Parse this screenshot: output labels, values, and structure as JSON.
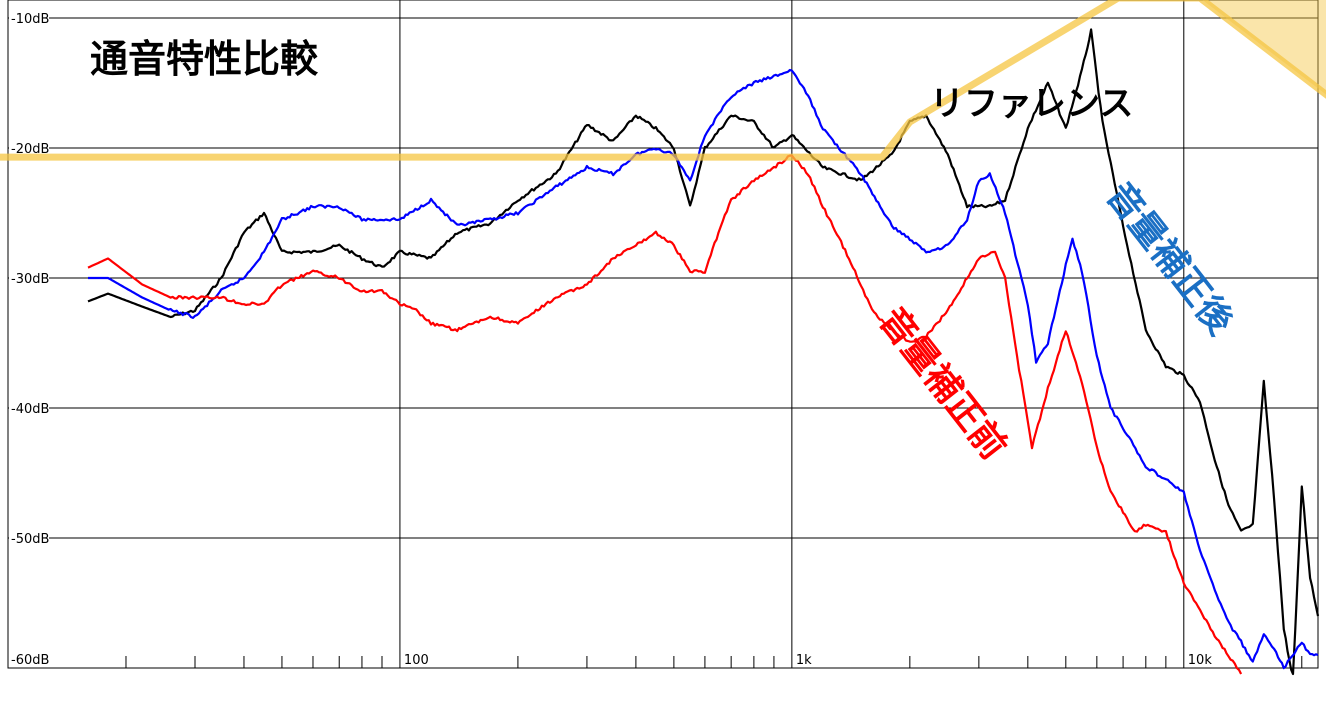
{
  "chart_data": {
    "type": "line",
    "title": "通音特性比較",
    "xlabel": "",
    "ylabel": "",
    "x_scale": "log",
    "xlim": [
      10,
      22000
    ],
    "ylim": [
      -60,
      -10
    ],
    "grid": true,
    "x_tick_labels": [
      {
        "value": 100,
        "label": "100"
      },
      {
        "value": 1000,
        "label": "1k"
      },
      {
        "value": 10000,
        "label": "10k"
      }
    ],
    "y_tick_labels": [
      {
        "value": -10,
        "label": "-10dB"
      },
      {
        "value": -20,
        "label": "-20dB"
      },
      {
        "value": -30,
        "label": "-30dB"
      },
      {
        "value": -40,
        "label": "-40dB"
      },
      {
        "value": -50,
        "label": "-50dB"
      },
      {
        "value": -60,
        "label": "-60dB"
      }
    ],
    "series": [
      {
        "name": "リファレンス",
        "color": "#000000",
        "points": [
          [
            16,
            -31.8
          ],
          [
            18,
            -31.2
          ],
          [
            22,
            -32.2
          ],
          [
            26,
            -33
          ],
          [
            30,
            -32.5
          ],
          [
            35,
            -30
          ],
          [
            40,
            -26.5
          ],
          [
            45,
            -25
          ],
          [
            50,
            -28
          ],
          [
            60,
            -28
          ],
          [
            70,
            -27.5
          ],
          [
            80,
            -28.5
          ],
          [
            90,
            -29.2
          ],
          [
            100,
            -28
          ],
          [
            120,
            -28.5
          ],
          [
            140,
            -26.5
          ],
          [
            170,
            -25.8
          ],
          [
            200,
            -24
          ],
          [
            250,
            -22
          ],
          [
            300,
            -18.2
          ],
          [
            350,
            -19.5
          ],
          [
            400,
            -17.5
          ],
          [
            450,
            -18.5
          ],
          [
            500,
            -20
          ],
          [
            550,
            -24.5
          ],
          [
            600,
            -20
          ],
          [
            700,
            -17.5
          ],
          [
            800,
            -18
          ],
          [
            900,
            -20
          ],
          [
            1000,
            -19
          ],
          [
            1200,
            -21.5
          ],
          [
            1500,
            -22.5
          ],
          [
            1800,
            -20.5
          ],
          [
            2000,
            -18
          ],
          [
            2200,
            -17.5
          ],
          [
            2500,
            -20.5
          ],
          [
            2800,
            -24.5
          ],
          [
            3200,
            -24.5
          ],
          [
            3500,
            -24
          ],
          [
            4000,
            -18.5
          ],
          [
            4500,
            -15
          ],
          [
            5000,
            -18.5
          ],
          [
            5500,
            -14
          ],
          [
            5800,
            -11
          ],
          [
            6200,
            -18
          ],
          [
            7000,
            -26
          ],
          [
            8000,
            -34
          ],
          [
            9000,
            -36.8
          ],
          [
            10000,
            -37.5
          ],
          [
            11000,
            -39.5
          ],
          [
            12000,
            -44
          ],
          [
            13000,
            -47.5
          ],
          [
            14000,
            -49.5
          ],
          [
            15000,
            -49
          ],
          [
            16000,
            -38
          ],
          [
            17000,
            -47
          ],
          [
            18000,
            -57
          ],
          [
            19000,
            -61
          ],
          [
            20000,
            -46
          ],
          [
            21000,
            -53
          ],
          [
            22000,
            -56
          ]
        ]
      },
      {
        "name": "音量補正後",
        "color": "#0000ff",
        "points": [
          [
            16,
            -30
          ],
          [
            18,
            -30
          ],
          [
            22,
            -31.5
          ],
          [
            26,
            -32.5
          ],
          [
            30,
            -33
          ],
          [
            35,
            -31
          ],
          [
            40,
            -30
          ],
          [
            45,
            -28
          ],
          [
            50,
            -25.5
          ],
          [
            60,
            -24.5
          ],
          [
            70,
            -24.5
          ],
          [
            80,
            -25.5
          ],
          [
            100,
            -25.5
          ],
          [
            120,
            -24
          ],
          [
            140,
            -26
          ],
          [
            170,
            -25.5
          ],
          [
            200,
            -25
          ],
          [
            250,
            -23
          ],
          [
            300,
            -21.5
          ],
          [
            350,
            -22
          ],
          [
            400,
            -20.5
          ],
          [
            450,
            -20
          ],
          [
            500,
            -20.5
          ],
          [
            550,
            -22.5
          ],
          [
            600,
            -19
          ],
          [
            700,
            -16
          ],
          [
            800,
            -15
          ],
          [
            900,
            -14.5
          ],
          [
            1000,
            -14
          ],
          [
            1100,
            -16
          ],
          [
            1200,
            -18.5
          ],
          [
            1500,
            -22
          ],
          [
            1800,
            -26
          ],
          [
            2000,
            -27
          ],
          [
            2200,
            -28
          ],
          [
            2500,
            -27.5
          ],
          [
            2800,
            -25.5
          ],
          [
            3000,
            -22.5
          ],
          [
            3200,
            -22
          ],
          [
            3500,
            -25
          ],
          [
            4000,
            -32
          ],
          [
            4200,
            -36.5
          ],
          [
            4500,
            -35
          ],
          [
            5000,
            -29
          ],
          [
            5200,
            -27
          ],
          [
            5500,
            -29.5
          ],
          [
            6000,
            -36
          ],
          [
            6500,
            -40
          ],
          [
            7000,
            -41.5
          ],
          [
            8000,
            -44.5
          ],
          [
            9000,
            -45.5
          ],
          [
            10000,
            -46.5
          ],
          [
            11000,
            -51
          ],
          [
            12000,
            -54
          ],
          [
            13000,
            -56.5
          ],
          [
            14000,
            -58
          ],
          [
            15000,
            -59.5
          ],
          [
            16000,
            -57.5
          ],
          [
            17000,
            -58.5
          ],
          [
            18000,
            -60
          ],
          [
            20000,
            -58
          ],
          [
            21000,
            -59
          ],
          [
            22000,
            -59
          ]
        ]
      },
      {
        "name": "音量補正前",
        "color": "#ff0000",
        "points": [
          [
            16,
            -29.2
          ],
          [
            18,
            -28.5
          ],
          [
            22,
            -30.5
          ],
          [
            26,
            -31.5
          ],
          [
            30,
            -31.5
          ],
          [
            35,
            -31.5
          ],
          [
            40,
            -32
          ],
          [
            45,
            -32
          ],
          [
            50,
            -30.5
          ],
          [
            60,
            -29.5
          ],
          [
            70,
            -30
          ],
          [
            80,
            -31
          ],
          [
            90,
            -31
          ],
          [
            100,
            -32
          ],
          [
            110,
            -32.5
          ],
          [
            120,
            -33.5
          ],
          [
            140,
            -34
          ],
          [
            170,
            -33
          ],
          [
            200,
            -33.5
          ],
          [
            250,
            -31.5
          ],
          [
            300,
            -30.5
          ],
          [
            350,
            -28.5
          ],
          [
            400,
            -27.5
          ],
          [
            450,
            -26.5
          ],
          [
            500,
            -27.5
          ],
          [
            550,
            -29.5
          ],
          [
            600,
            -29.5
          ],
          [
            650,
            -26.5
          ],
          [
            700,
            -24
          ],
          [
            800,
            -22.5
          ],
          [
            900,
            -21.5
          ],
          [
            1000,
            -20.5
          ],
          [
            1100,
            -22
          ],
          [
            1200,
            -24.5
          ],
          [
            1400,
            -28.5
          ],
          [
            1500,
            -30.5
          ],
          [
            1600,
            -32.5
          ],
          [
            1800,
            -34
          ],
          [
            2000,
            -35
          ],
          [
            2200,
            -34.5
          ],
          [
            2500,
            -32.5
          ],
          [
            2800,
            -30
          ],
          [
            3000,
            -28.5
          ],
          [
            3300,
            -28
          ],
          [
            3500,
            -30
          ],
          [
            3800,
            -37
          ],
          [
            4100,
            -43
          ],
          [
            4500,
            -38.5
          ],
          [
            5000,
            -34
          ],
          [
            5500,
            -38
          ],
          [
            6000,
            -43
          ],
          [
            6500,
            -46.5
          ],
          [
            7000,
            -48
          ],
          [
            7500,
            -49.5
          ],
          [
            8000,
            -49
          ],
          [
            9000,
            -49.5
          ],
          [
            10000,
            -53.5
          ],
          [
            11000,
            -55.5
          ],
          [
            12000,
            -57.5
          ],
          [
            13000,
            -59
          ],
          [
            14000,
            -60.5
          ]
        ]
      }
    ],
    "annotations": [
      {
        "text": "リファレンス",
        "color": "#000000"
      },
      {
        "text": "音量補正後",
        "color": "#1a6fc4"
      },
      {
        "text": "音量補正前",
        "color": "#ff0000"
      }
    ],
    "highlight_color": "#f5c542"
  }
}
